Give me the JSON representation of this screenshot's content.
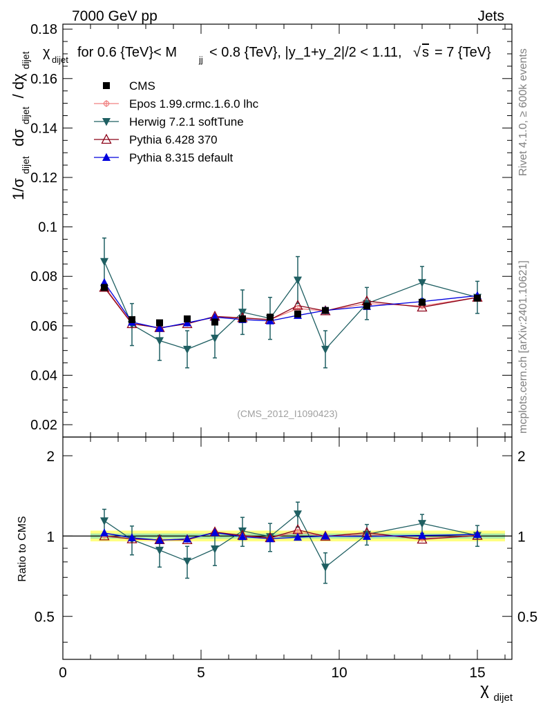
{
  "header": {
    "left": "7000 GeV pp",
    "right": "Jets"
  },
  "side_labels": {
    "rivet": "Rivet 4.1.0, ≥ 600k events",
    "mcplots": "mcplots.cern.ch [arXiv:2401.10621]"
  },
  "watermark": "(CMS_2012_I1090423)",
  "chart_data": [
    {
      "type": "line",
      "panel": "main",
      "title": "χ_dijet for 0.6 {TeV}< M_jj < 0.8 {TeV}, |y_1+y_2|/2 < 1.11, √s = 7 {TeV}",
      "title_parts": {
        "chi": "χ",
        "chi_sub": "dijet",
        "for": "for 0.6 {TeV}< M",
        "m_sub": "jj",
        "rest1": "< 0.8 {TeV}, |y_1+y_2|/2 < 1.11,",
        "sqrt": "√",
        "s": "s",
        "rest2": "= 7 {TeV}"
      },
      "ylabel": "1/σ_dijet dσ_dijet / dχ_dijet",
      "ylabel_parts": {
        "one_over_sigma": "1/σ",
        "dsigma": "dσ",
        "dchi": "/ dχ",
        "sub": "dijet"
      },
      "xlim": [
        0,
        16.25
      ],
      "ylim": [
        0.015,
        0.182
      ],
      "yticks": [
        0.02,
        0.04,
        0.06,
        0.08,
        0.1,
        0.12,
        0.14,
        0.16,
        0.18
      ],
      "ytick_labels": [
        "0.02",
        "0.04",
        "0.06",
        "0.08",
        "0.1",
        "0.12",
        "0.14",
        "0.16",
        "0.18"
      ],
      "legend_position": "top-left",
      "x": [
        1.5,
        2.5,
        3.5,
        4.5,
        5.5,
        6.5,
        7.5,
        8.5,
        9.5,
        11,
        13,
        15
      ],
      "series": [
        {
          "name": "CMS",
          "color": "#000000",
          "marker": "square",
          "line": false,
          "values": [
            0.0755,
            0.0625,
            0.0612,
            0.0628,
            0.0615,
            0.0628,
            0.0635,
            0.0648,
            0.0662,
            0.068,
            0.0695,
            0.0712
          ]
        },
        {
          "name": "Epos 1.99.crmc.1.6.0 lhc",
          "color": "#f08080",
          "marker": "cross",
          "line": true,
          "values": [
            0.076,
            0.061,
            0.059,
            0.061,
            0.0635,
            0.063,
            0.0625,
            0.067,
            0.066,
            0.069,
            0.068,
            0.0715
          ]
        },
        {
          "name": "Herwig 7.2.1 softTune",
          "color": "#1f5f62",
          "marker": "triangle-down",
          "line": true,
          "values": [
            0.086,
            0.0605,
            0.054,
            0.0505,
            0.055,
            0.0655,
            0.063,
            0.0785,
            0.0505,
            0.069,
            0.0775,
            0.0715
          ],
          "errors": [
            0.0095,
            0.0085,
            0.008,
            0.0075,
            0.008,
            0.009,
            0.0085,
            0.0095,
            0.0075,
            0.0065,
            0.0065,
            0.0065
          ]
        },
        {
          "name": "Pythia 6.428 370",
          "color": "#8b0016",
          "marker": "triangle-open",
          "line": true,
          "values": [
            0.0755,
            0.0608,
            0.0592,
            0.0608,
            0.0638,
            0.0632,
            0.0625,
            0.0682,
            0.066,
            0.07,
            0.0675,
            0.0715
          ]
        },
        {
          "name": "Pythia 8.315 default",
          "color": "#0000dd",
          "marker": "triangle-up",
          "line": true,
          "values": [
            0.0775,
            0.0615,
            0.059,
            0.0612,
            0.0635,
            0.0625,
            0.062,
            0.0642,
            0.0662,
            0.0678,
            0.0698,
            0.0722
          ]
        }
      ]
    },
    {
      "type": "line",
      "panel": "ratio",
      "ylabel": "Ratio to CMS",
      "xlabel": "χ_dijet",
      "xlabel_parts": {
        "chi": "χ",
        "sub": "dijet"
      },
      "xlim": [
        0,
        16.25
      ],
      "ylim": [
        0.345,
        2.35
      ],
      "yscale": "log",
      "yticks": [
        0.5,
        1,
        2
      ],
      "ytick_labels": [
        "0.5",
        "1",
        "2"
      ],
      "xticks": [
        0,
        5,
        10,
        15
      ],
      "xtick_labels": [
        "0",
        "5",
        "10",
        "15"
      ],
      "x": [
        1.5,
        2.5,
        3.5,
        4.5,
        5.5,
        6.5,
        7.5,
        8.5,
        9.5,
        11,
        13,
        15
      ],
      "band_range": [
        1,
        16
      ],
      "bands": [
        {
          "name": "outer",
          "color": "#ffff80",
          "low": 0.955,
          "high": 1.048
        },
        {
          "name": "inner",
          "color": "#a8e8a8",
          "low": 0.978,
          "high": 1.022
        }
      ],
      "series": [
        {
          "name": "Epos 1.99.crmc.1.6.0 lhc",
          "color": "#f08080",
          "marker": "cross",
          "values": [
            1.005,
            0.975,
            0.965,
            0.97,
            1.035,
            1.0,
            0.985,
            1.035,
            0.997,
            1.015,
            0.98,
            1.005
          ]
        },
        {
          "name": "Herwig 7.2.1 softTune",
          "color": "#1f5f62",
          "marker": "triangle-down",
          "values": [
            1.14,
            0.97,
            0.885,
            0.805,
            0.895,
            1.045,
            0.995,
            1.21,
            0.765,
            1.015,
            1.115,
            1.005
          ],
          "errors": [
            0.12,
            0.12,
            0.12,
            0.11,
            0.12,
            0.13,
            0.12,
            0.13,
            0.1,
            0.09,
            0.09,
            0.09
          ]
        },
        {
          "name": "Pythia 6.428 370",
          "color": "#8b0016",
          "marker": "triangle-open",
          "values": [
            1.0,
            0.975,
            0.968,
            0.968,
            1.035,
            1.005,
            0.985,
            1.055,
            0.997,
            1.03,
            0.972,
            1.005
          ]
        },
        {
          "name": "Pythia 8.315 default",
          "color": "#0000dd",
          "marker": "triangle-up",
          "values": [
            1.027,
            0.985,
            0.965,
            0.975,
            1.03,
            0.995,
            0.977,
            0.99,
            1.0,
            0.997,
            1.005,
            1.014
          ]
        }
      ]
    }
  ]
}
